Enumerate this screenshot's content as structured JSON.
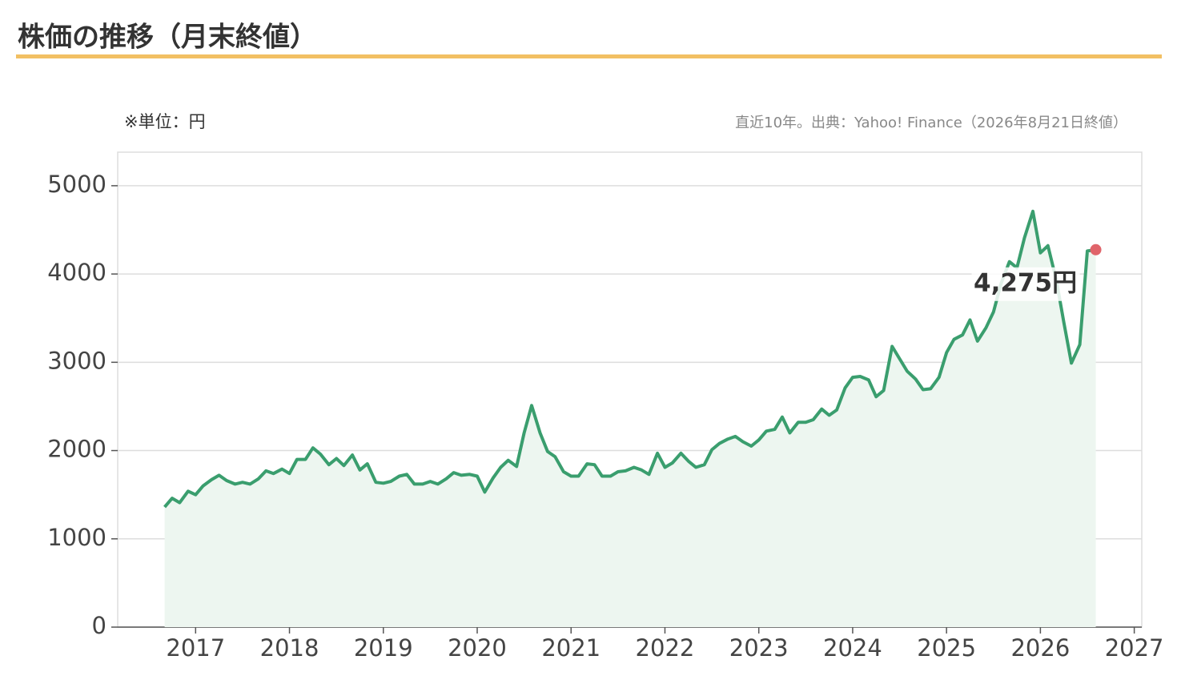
{
  "title": "株価の推移（月末終値）",
  "chart_data": {
    "type": "line",
    "unit_note": "※単位：円",
    "source": "直近10年。出典：Yahoo! Finance（2026年8月21日終値）",
    "x": [
      2016.67,
      2016.75,
      2016.83,
      2016.92,
      2017.0,
      2017.08,
      2017.17,
      2017.25,
      2017.33,
      2017.42,
      2017.5,
      2017.58,
      2017.67,
      2017.75,
      2017.83,
      2017.92,
      2018.0,
      2018.08,
      2018.17,
      2018.25,
      2018.33,
      2018.42,
      2018.5,
      2018.58,
      2018.67,
      2018.75,
      2018.83,
      2018.92,
      2019.0,
      2019.08,
      2019.17,
      2019.25,
      2019.33,
      2019.42,
      2019.5,
      2019.58,
      2019.67,
      2019.75,
      2019.83,
      2019.92,
      2020.0,
      2020.08,
      2020.17,
      2020.25,
      2020.33,
      2020.42,
      2020.5,
      2020.58,
      2020.67,
      2020.75,
      2020.83,
      2020.92,
      2021.0,
      2021.08,
      2021.17,
      2021.25,
      2021.33,
      2021.42,
      2021.5,
      2021.58,
      2021.67,
      2021.75,
      2021.83,
      2021.92,
      2022.0,
      2022.08,
      2022.17,
      2022.25,
      2022.33,
      2022.42,
      2022.5,
      2022.58,
      2022.67,
      2022.75,
      2022.83,
      2022.92,
      2023.0,
      2023.08,
      2023.17,
      2023.25,
      2023.33,
      2023.42,
      2023.5,
      2023.58,
      2023.67,
      2023.75,
      2023.83,
      2023.92,
      2024.0,
      2024.08,
      2024.17,
      2024.25,
      2024.33,
      2024.42,
      2024.5,
      2024.58,
      2024.67,
      2024.75,
      2024.83,
      2024.92,
      2025.0,
      2025.08,
      2025.17,
      2025.25,
      2025.33,
      2025.42,
      2025.5,
      2025.58,
      2025.67,
      2025.75,
      2025.83,
      2025.92,
      2026.0,
      2026.08,
      2026.17,
      2026.25,
      2026.33,
      2026.42,
      2026.5,
      2026.59
    ],
    "values": [
      1360,
      1460,
      1410,
      1540,
      1500,
      1600,
      1670,
      1720,
      1660,
      1620,
      1640,
      1620,
      1680,
      1770,
      1740,
      1790,
      1740,
      1900,
      1900,
      2030,
      1960,
      1840,
      1910,
      1830,
      1950,
      1780,
      1850,
      1640,
      1630,
      1650,
      1710,
      1730,
      1620,
      1620,
      1650,
      1620,
      1680,
      1750,
      1720,
      1730,
      1710,
      1530,
      1690,
      1810,
      1890,
      1820,
      2200,
      2510,
      2200,
      1990,
      1930,
      1760,
      1710,
      1710,
      1850,
      1840,
      1710,
      1710,
      1760,
      1770,
      1810,
      1780,
      1730,
      1970,
      1810,
      1860,
      1970,
      1880,
      1810,
      1840,
      2010,
      2080,
      2130,
      2160,
      2100,
      2050,
      2120,
      2220,
      2240,
      2380,
      2200,
      2320,
      2320,
      2350,
      2470,
      2400,
      2460,
      2710,
      2830,
      2840,
      2800,
      2610,
      2680,
      3180,
      3040,
      2900,
      2810,
      2690,
      2700,
      2830,
      3110,
      3260,
      3310,
      3480,
      3240,
      3390,
      3570,
      3890,
      4140,
      4070,
      4410,
      4710,
      4240,
      4320,
      3930,
      3450,
      2990,
      3200,
      4260,
      4275
    ],
    "color": "#3a9e6e",
    "fill_color": "#edf6f0",
    "annotation": {
      "value": 4275,
      "label": "4,275円",
      "color": "#e0646a"
    },
    "xlim": [
      2016.17,
      2027.08
    ],
    "xticks": [
      2017,
      2018,
      2019,
      2020,
      2021,
      2022,
      2023,
      2024,
      2025,
      2026,
      2027
    ],
    "ylim": [
      0,
      5380
    ],
    "yticks": [
      0,
      1000,
      2000,
      3000,
      4000,
      5000
    ],
    "grid": true
  }
}
